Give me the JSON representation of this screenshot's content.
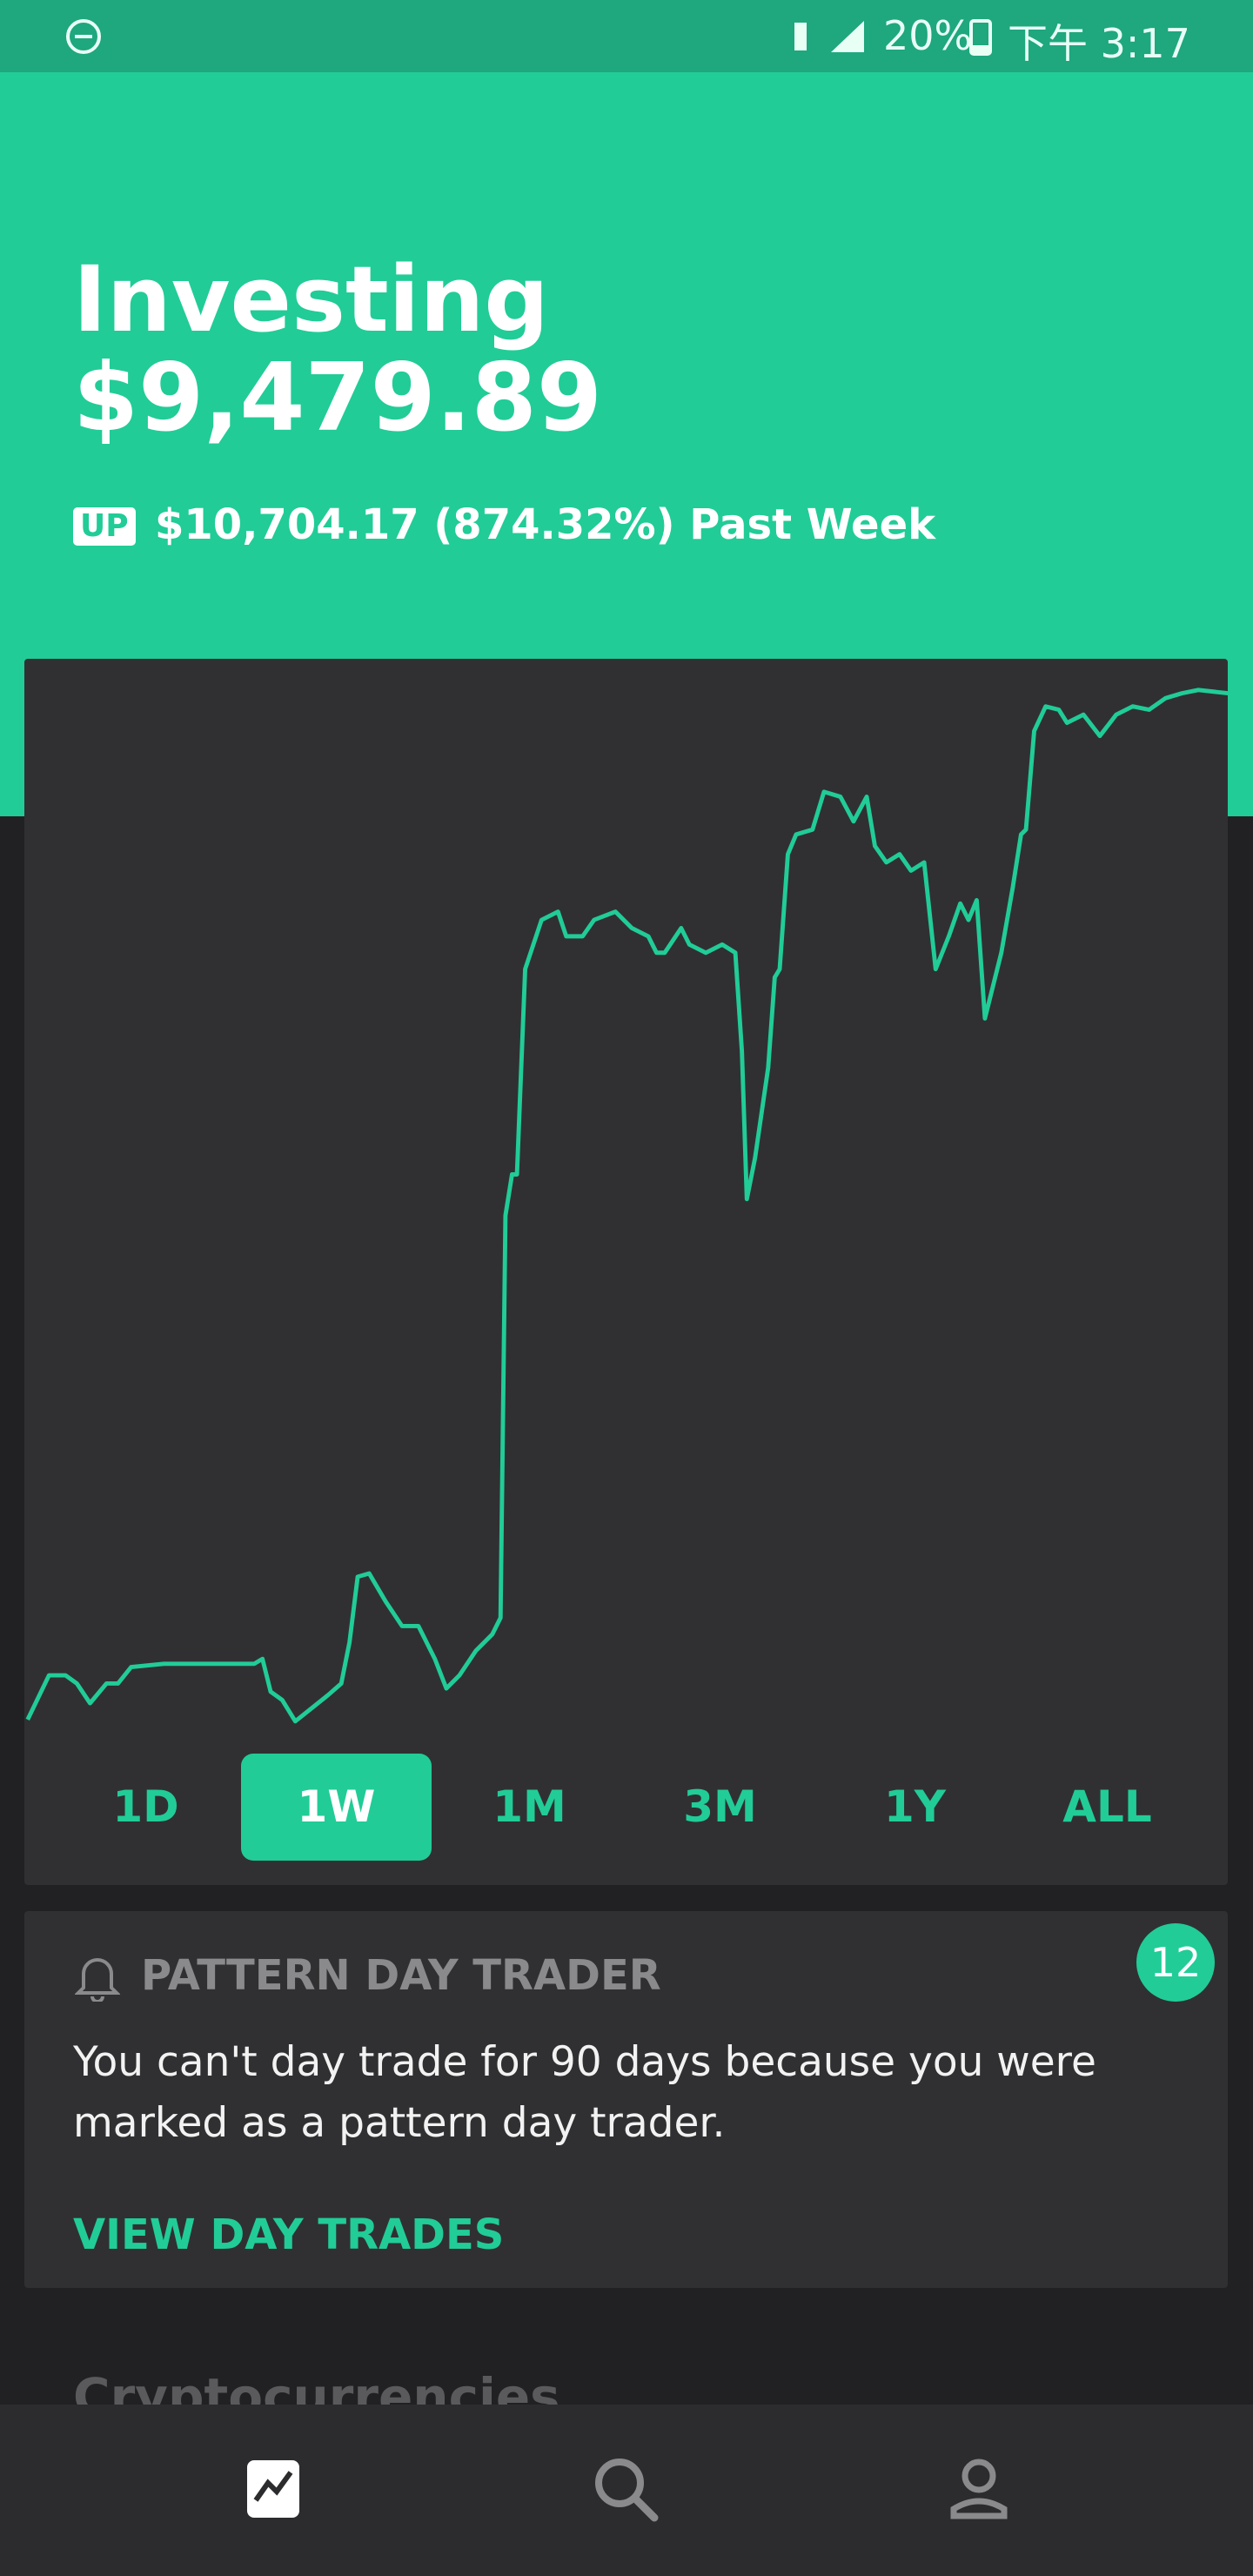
{
  "status_bar": {
    "battery": "20%",
    "time": "下午 3:17"
  },
  "header": {
    "title": "Investing",
    "balance": "$9,479.89",
    "direction": "UP",
    "change": "$10,704.17 (874.32%) Past Week"
  },
  "range_tabs": {
    "options": [
      "1D",
      "1W",
      "1M",
      "3M",
      "1Y",
      "ALL"
    ],
    "selected": "1W"
  },
  "notice": {
    "title": "PATTERN DAY TRADER",
    "body": "You can't day trade for 90 days because you were marked as a pattern day trader.",
    "link": "VIEW DAY TRADES",
    "count": "12"
  },
  "next_section": {
    "title": "Cryptocurrencies"
  }
}
